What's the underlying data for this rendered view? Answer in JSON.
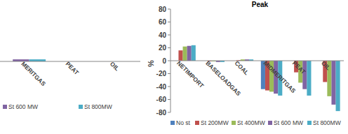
{
  "chart_data": [
    {
      "type": "bar",
      "categories": [
        "MERITGAS",
        "PEAT",
        "OIL"
      ],
      "series": [
        {
          "name": "St 600 MW",
          "color": "#8064a2",
          "values": [
            2,
            0,
            0
          ]
        },
        {
          "name": "St 800MW",
          "color": "#4bacc6",
          "values": [
            2,
            0,
            0
          ]
        }
      ],
      "ylim": [
        -30,
        60
      ],
      "tick_labels": "x",
      "legend": "bottom"
    },
    {
      "type": "bar",
      "title": "Peak",
      "y_label": "%",
      "categories": [
        "NETIMPORT",
        "BASELOADGAS",
        "COAL",
        "MIDMERITGAS",
        "PEAT",
        "OIL"
      ],
      "series": [
        {
          "name": "No st",
          "color": "#4f81bd",
          "values": [
            0,
            0,
            0,
            -44,
            0,
            0
          ]
        },
        {
          "name": "St 200MW",
          "color": "#c0504d",
          "values": [
            16,
            -1,
            1,
            -46,
            -18,
            -33
          ]
        },
        {
          "name": "St 400MW",
          "color": "#9bbb59",
          "values": [
            22,
            -1,
            2,
            -48,
            -34,
            -55
          ]
        },
        {
          "name": "St 600 MW",
          "color": "#8064a2",
          "values": [
            23,
            -2,
            2,
            -51,
            -44,
            -68
          ]
        },
        {
          "name": "St 800MW",
          "color": "#4bacc6",
          "values": [
            24,
            -2,
            2,
            -54,
            -54,
            -78
          ]
        }
      ],
      "ylim": [
        -80,
        80
      ],
      "yticks": [
        -80,
        -60,
        -40,
        -20,
        0,
        20,
        40,
        60,
        80
      ],
      "legend": "bottom"
    }
  ]
}
